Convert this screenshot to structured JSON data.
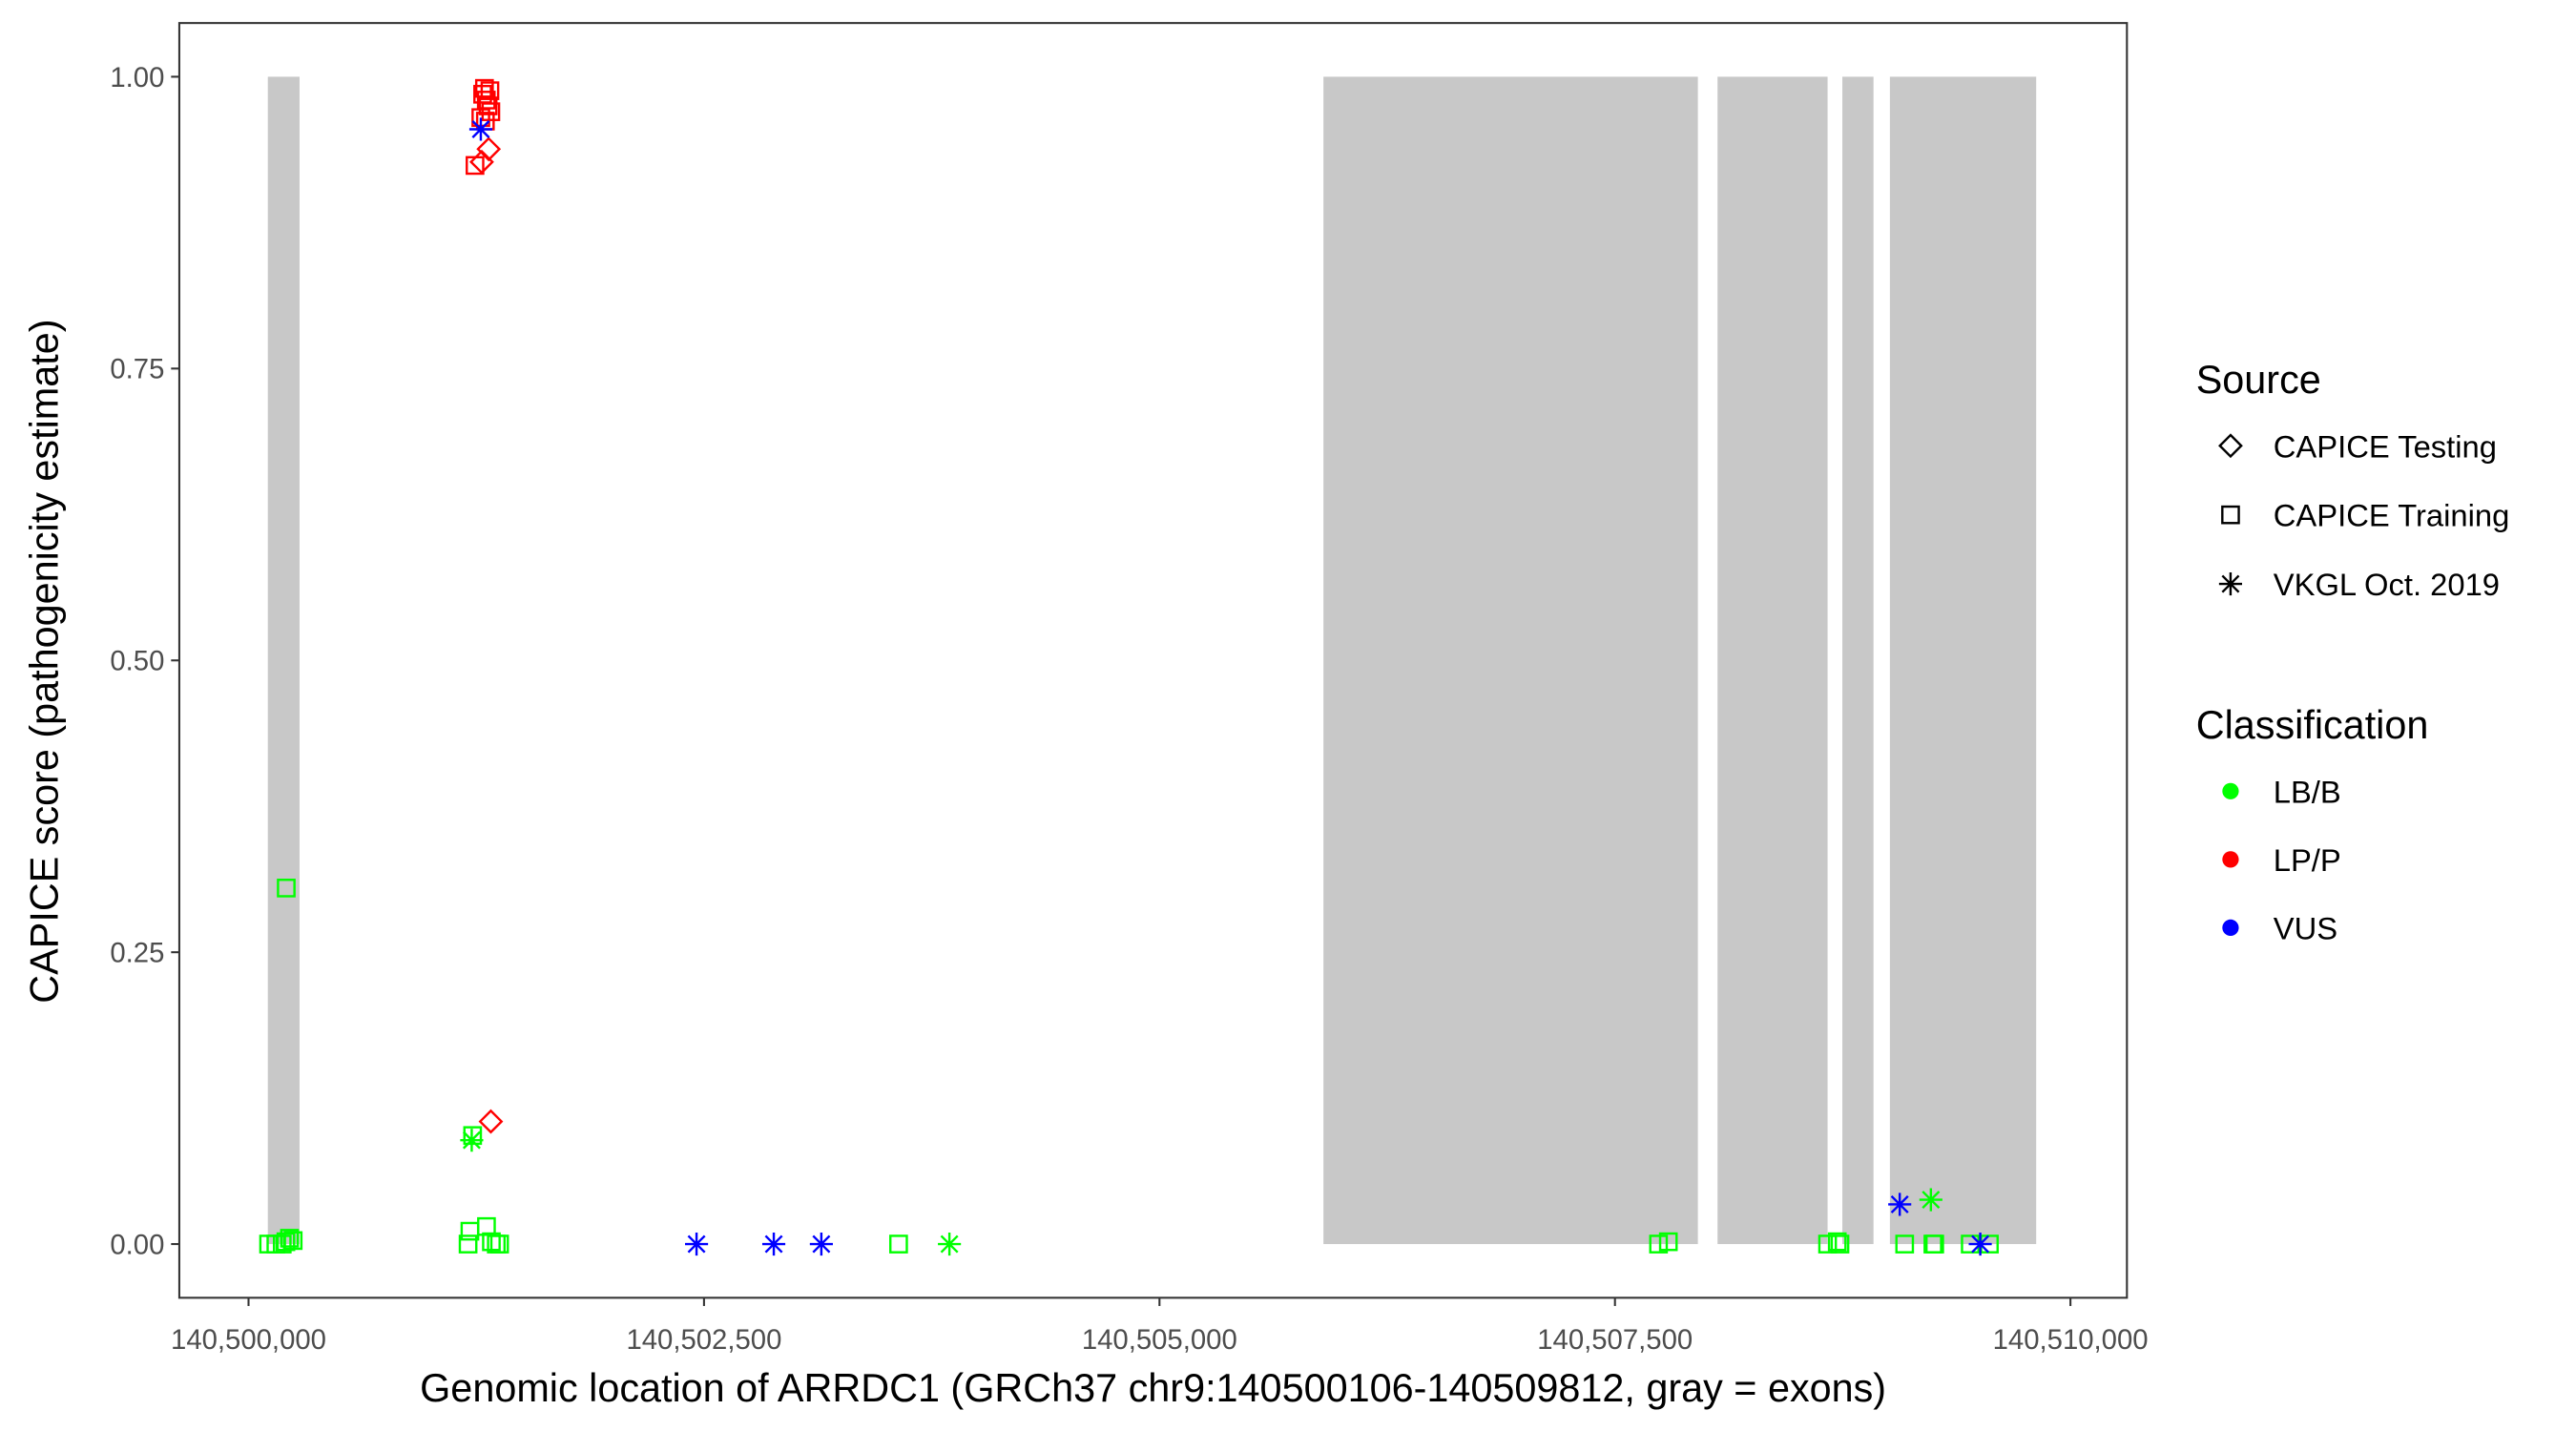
{
  "chart_data": {
    "type": "scatter",
    "title": "",
    "xlabel": "Genomic location of ARRDC1 (GRCh37 chr9:140500106-140509812, gray = exons)",
    "ylabel": "CAPICE score (pathogenicity estimate)",
    "xlim": [
      140499620,
      140510310
    ],
    "ylim": [
      -0.046,
      1.046
    ],
    "x_ticks": [
      140500000,
      140502500,
      140505000,
      140507500,
      140510000
    ],
    "x_tick_labels": [
      "140,500,000",
      "140,502,500",
      "140,505,000",
      "140,507,500",
      "140,510,000"
    ],
    "y_ticks": [
      0,
      0.25,
      0.5,
      0.75,
      1.0
    ],
    "y_tick_labels": [
      "0.00",
      "0.25",
      "0.50",
      "0.75",
      "1.00"
    ],
    "grid": false,
    "exons": [
      [
        140500106,
        140500280
      ],
      [
        140505900,
        140507955
      ],
      [
        140508063,
        140508667
      ],
      [
        140508748,
        140508919
      ],
      [
        140509009,
        140509812
      ]
    ],
    "exon_color": "#C8C8C8",
    "legend": {
      "placement": "right",
      "source_title": "Source",
      "sources": [
        {
          "key": "testing",
          "label": "CAPICE Testing",
          "shape": "diamond"
        },
        {
          "key": "training",
          "label": "CAPICE Training",
          "shape": "square"
        },
        {
          "key": "vkgl",
          "label": "VKGL Oct. 2019",
          "shape": "asterisk"
        }
      ],
      "class_title": "Classification",
      "classes": [
        {
          "key": "LBB",
          "label": "LB/B",
          "color": "#00FF00"
        },
        {
          "key": "LPP",
          "label": "LP/P",
          "color": "#FF0000"
        },
        {
          "key": "VUS",
          "label": "VUS",
          "color": "#0000FF"
        }
      ]
    },
    "points": [
      {
        "x": 140501243,
        "y": 0.924,
        "cls": "LPP",
        "src": "training"
      },
      {
        "x": 140501275,
        "y": 0.965,
        "cls": "LPP",
        "src": "training"
      },
      {
        "x": 140501285,
        "y": 0.985,
        "cls": "LPP",
        "src": "training"
      },
      {
        "x": 140501295,
        "y": 0.99,
        "cls": "LPP",
        "src": "training"
      },
      {
        "x": 140501305,
        "y": 0.98,
        "cls": "LPP",
        "src": "training"
      },
      {
        "x": 140501315,
        "y": 0.975,
        "cls": "LPP",
        "src": "training"
      },
      {
        "x": 140501325,
        "y": 0.988,
        "cls": "LPP",
        "src": "training"
      },
      {
        "x": 140501330,
        "y": 0.97,
        "cls": "LPP",
        "src": "training"
      },
      {
        "x": 140501300,
        "y": 0.962,
        "cls": "LPP",
        "src": "training"
      },
      {
        "x": 140501280,
        "y": 0.927,
        "cls": "LPP",
        "src": "testing"
      },
      {
        "x": 140501318,
        "y": 0.938,
        "cls": "LPP",
        "src": "testing"
      },
      {
        "x": 140501275,
        "y": 0.955,
        "cls": "VUS",
        "src": "vkgl"
      },
      {
        "x": 140501330,
        "y": 0.105,
        "cls": "LPP",
        "src": "testing"
      },
      {
        "x": 140500207,
        "y": 0.305,
        "cls": "LBB",
        "src": "training"
      },
      {
        "x": 140500110,
        "y": 0.0,
        "cls": "LBB",
        "src": "training"
      },
      {
        "x": 140500150,
        "y": 0.0,
        "cls": "LBB",
        "src": "training"
      },
      {
        "x": 140500185,
        "y": 0.0,
        "cls": "LBB",
        "src": "training"
      },
      {
        "x": 140500205,
        "y": 0.002,
        "cls": "LBB",
        "src": "training"
      },
      {
        "x": 140500225,
        "y": 0.005,
        "cls": "LBB",
        "src": "training"
      },
      {
        "x": 140500245,
        "y": 0.003,
        "cls": "LBB",
        "src": "training"
      },
      {
        "x": 140501230,
        "y": 0.093,
        "cls": "LBB",
        "src": "training"
      },
      {
        "x": 140501225,
        "y": 0.089,
        "cls": "LBB",
        "src": "vkgl"
      },
      {
        "x": 140501215,
        "y": 0.011,
        "cls": "LBB",
        "src": "training"
      },
      {
        "x": 140501306,
        "y": 0.015,
        "cls": "LBB",
        "src": "training"
      },
      {
        "x": 140501205,
        "y": 0.0,
        "cls": "LBB",
        "src": "training"
      },
      {
        "x": 140501333,
        "y": 0.002,
        "cls": "LBB",
        "src": "training"
      },
      {
        "x": 140501360,
        "y": 0.0,
        "cls": "LBB",
        "src": "training"
      },
      {
        "x": 140501378,
        "y": 0.0,
        "cls": "LBB",
        "src": "training"
      },
      {
        "x": 140502459,
        "y": 0.0,
        "cls": "VUS",
        "src": "vkgl"
      },
      {
        "x": 140502883,
        "y": 0.0,
        "cls": "VUS",
        "src": "vkgl"
      },
      {
        "x": 140503144,
        "y": 0.0,
        "cls": "VUS",
        "src": "vkgl"
      },
      {
        "x": 140503568,
        "y": 0.0,
        "cls": "LBB",
        "src": "training"
      },
      {
        "x": 140503847,
        "y": 0.0,
        "cls": "LBB",
        "src": "vkgl"
      },
      {
        "x": 140507739,
        "y": 0.0,
        "cls": "LBB",
        "src": "training"
      },
      {
        "x": 140507793,
        "y": 0.002,
        "cls": "LBB",
        "src": "training"
      },
      {
        "x": 140508667,
        "y": 0.0,
        "cls": "LBB",
        "src": "training"
      },
      {
        "x": 140508720,
        "y": 0.002,
        "cls": "LBB",
        "src": "training"
      },
      {
        "x": 140508735,
        "y": 0.0,
        "cls": "LBB",
        "src": "training"
      },
      {
        "x": 140509090,
        "y": 0.0,
        "cls": "LBB",
        "src": "training"
      },
      {
        "x": 140509245,
        "y": 0.0,
        "cls": "LBB",
        "src": "training"
      },
      {
        "x": 140509255,
        "y": 0.0,
        "cls": "LBB",
        "src": "training"
      },
      {
        "x": 140509450,
        "y": 0.0,
        "cls": "LBB",
        "src": "training"
      },
      {
        "x": 140509555,
        "y": 0.0,
        "cls": "LBB",
        "src": "training"
      },
      {
        "x": 140509063,
        "y": 0.034,
        "cls": "VUS",
        "src": "vkgl"
      },
      {
        "x": 140509234,
        "y": 0.038,
        "cls": "LBB",
        "src": "vkgl"
      },
      {
        "x": 140509505,
        "y": 0.0,
        "cls": "VUS",
        "src": "vkgl"
      }
    ]
  }
}
